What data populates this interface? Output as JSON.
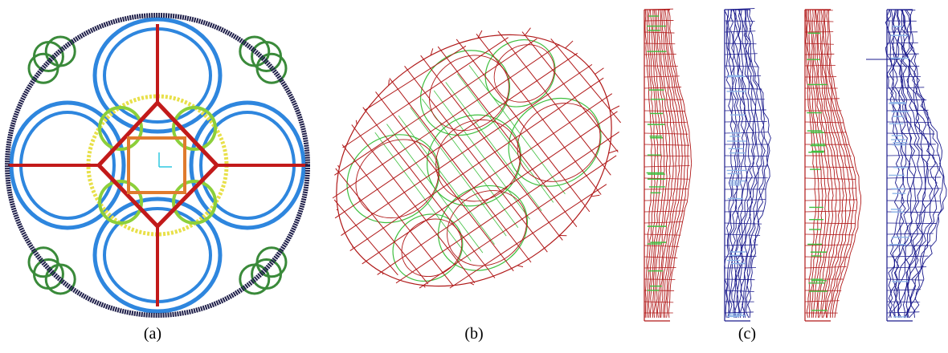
{
  "captions": {
    "a": "(a)",
    "b": "(b)",
    "c": "(c)"
  },
  "colors": {
    "outer_ring": "#1f1f4a",
    "ribs": "#c21a1a",
    "lobes": "#2e86de",
    "cusps": "#3a8a3a",
    "inner_ring": "#e8e04a",
    "inner_arcs": "#8ccf3a",
    "center_square": "#e07b2e",
    "axes_marker": "#2ec8e0",
    "mesh_red": "#b01818",
    "mesh_green": "#3fbf3f",
    "mesh_blue": "#1a1a8c",
    "mesh_lightblue": "#8fb6e8"
  }
}
